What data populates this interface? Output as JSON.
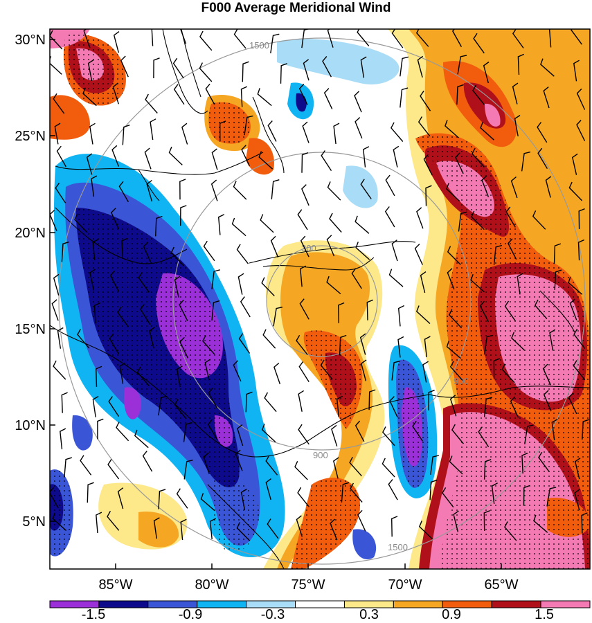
{
  "title": "F000 Average Meridional Wind",
  "latitude_labels": [
    "30°N",
    "25°N",
    "20°N",
    "15°N",
    "10°N",
    "5°N"
  ],
  "longitude_labels": [
    "85°W",
    "80°W",
    "75°W",
    "70°W",
    "65°W"
  ],
  "colorbar": {
    "labels": [
      "-1.5",
      "-0.9",
      "-0.3",
      "0.3",
      "0.9",
      "1.5"
    ],
    "colors": [
      "#9b30d9",
      "#0d0b8c",
      "#3a55d6",
      "#11b4f2",
      "#a9dcf6",
      "#ffffff",
      "#fde88a",
      "#f5a623",
      "#f25c0d",
      "#b0101a",
      "#f37ab2"
    ]
  },
  "range_ring_labels": [
    "300",
    "900",
    "1500"
  ],
  "colors": {
    "coastline": "#000000",
    "range_ring": "#999999",
    "wind_barb": "#000000"
  }
}
